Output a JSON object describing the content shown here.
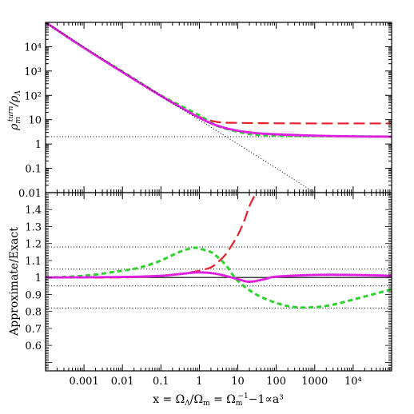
{
  "chart_data": [
    {
      "type": "line",
      "panel": "top",
      "xscale": "log",
      "yscale": "log",
      "xlim": [
        0.0001,
        100000
      ],
      "ylim": [
        0.01,
        100000
      ],
      "ylabel": "ρ_m^turn/ρ_Λ",
      "ytick_labels": [
        "0.01",
        "0.1",
        "1",
        "10",
        "10²",
        "10³",
        "10⁴"
      ],
      "ytick_values": [
        0.01,
        0.1,
        1,
        10,
        100,
        1000,
        10000
      ],
      "series": [
        {
          "style": "solid",
          "color": "#000000",
          "x": [
            0.0001,
            0.001,
            0.01,
            0.1,
            0.3,
            1,
            3,
            10,
            30,
            100,
            1000,
            10000,
            100000
          ],
          "y": [
            100000,
            9000,
            900,
            95,
            35,
            12,
            5.5,
            3.5,
            2.8,
            2.5,
            2.2,
            2.05,
            2.0
          ]
        },
        {
          "style": "long-dash",
          "color": "#e8202a",
          "x": [
            0.0001,
            0.001,
            0.01,
            0.1,
            0.3,
            1,
            3,
            10,
            30,
            100,
            1000,
            10000,
            100000
          ],
          "y": [
            100000,
            9000,
            900,
            95,
            35,
            13,
            8,
            7.4,
            7.2,
            7.1,
            7.0,
            7.0,
            7.0
          ]
        },
        {
          "style": "short-dash",
          "color": "#2bd42b",
          "x": [
            0.0001,
            0.001,
            0.01,
            0.1,
            0.3,
            1,
            3,
            10,
            30,
            100,
            1000,
            10000,
            100000
          ],
          "y": [
            100000,
            9000,
            950,
            100,
            40,
            15,
            5.5,
            3.2,
            2.4,
            2.2,
            2.1,
            2.05,
            2.0
          ]
        },
        {
          "style": "dotted-thick",
          "color": "#e020e0",
          "x": [
            0.0001,
            0.001,
            0.01,
            0.1,
            0.3,
            1,
            3,
            10,
            30,
            100,
            1000,
            10000,
            100000
          ],
          "y": [
            100000,
            9000,
            900,
            95,
            35,
            12,
            5.6,
            3.5,
            2.8,
            2.5,
            2.2,
            2.05,
            2.0
          ]
        },
        {
          "style": "thin-dotted",
          "color": "#000000",
          "x": [
            0.0001,
            0.1,
            10,
            1000,
            2000
          ],
          "y": [
            100000,
            95,
            1,
            0.01,
            0.005
          ]
        }
      ],
      "reference_lines": [
        {
          "y": 2,
          "style": "dotted"
        }
      ]
    },
    {
      "type": "line",
      "panel": "bottom",
      "xscale": "log",
      "xlim": [
        0.0001,
        100000
      ],
      "ylim": [
        0.45,
        1.5
      ],
      "xlabel": "x = Ω_Λ/Ω_m = Ω_m⁻¹−1∝a³",
      "ylabel": "Approximate/Exact",
      "xtick_labels": [
        "0.001",
        "0.01",
        "0.1",
        "1",
        "10",
        "100",
        "1000",
        "10⁴"
      ],
      "xtick_values": [
        0.001,
        0.01,
        0.1,
        1,
        10,
        100,
        1000,
        10000
      ],
      "ytick_labels": [
        "0.6",
        "0.7",
        "0.8",
        "0.9",
        "1",
        "1.1",
        "1.2",
        "1.3",
        "1.4"
      ],
      "ytick_values": [
        0.6,
        0.7,
        0.8,
        0.9,
        1.0,
        1.1,
        1.2,
        1.3,
        1.4
      ],
      "series": [
        {
          "style": "solid",
          "color": "#000000",
          "x": [
            0.0001,
            100000
          ],
          "y": [
            1,
            1
          ]
        },
        {
          "style": "long-dash",
          "color": "#e8202a",
          "x": [
            0.0001,
            0.01,
            0.1,
            0.3,
            1,
            2,
            3,
            5,
            10,
            15,
            20,
            30
          ],
          "y": [
            1.0,
            1.0,
            1.01,
            1.02,
            1.04,
            1.06,
            1.09,
            1.14,
            1.25,
            1.34,
            1.42,
            1.5
          ]
        },
        {
          "style": "short-dash",
          "color": "#2bd42b",
          "x": [
            0.0001,
            0.001,
            0.01,
            0.03,
            0.1,
            0.3,
            0.7,
            1,
            2,
            3,
            5,
            10,
            30,
            100,
            300,
            1000,
            3000,
            10000,
            100000
          ],
          "y": [
            1.0,
            1.01,
            1.04,
            1.06,
            1.1,
            1.15,
            1.175,
            1.17,
            1.15,
            1.12,
            1.07,
            0.98,
            0.9,
            0.85,
            0.825,
            0.825,
            0.84,
            0.87,
            0.93
          ]
        },
        {
          "style": "dotted-thick",
          "color": "#e020e0",
          "x": [
            0.0001,
            0.01,
            0.1,
            0.3,
            1,
            3,
            10,
            20,
            50,
            100,
            1000,
            10000,
            100000
          ],
          "y": [
            1.0,
            1.003,
            1.01,
            1.02,
            1.03,
            1.02,
            0.99,
            0.975,
            0.99,
            1.005,
            1.015,
            1.015,
            1.01
          ]
        }
      ],
      "reference_lines": [
        {
          "y": 1.18,
          "style": "dotted"
        },
        {
          "y": 1.05,
          "style": "dotted"
        },
        {
          "y": 0.95,
          "style": "dotted"
        },
        {
          "y": 0.82,
          "style": "dotted"
        }
      ]
    }
  ]
}
